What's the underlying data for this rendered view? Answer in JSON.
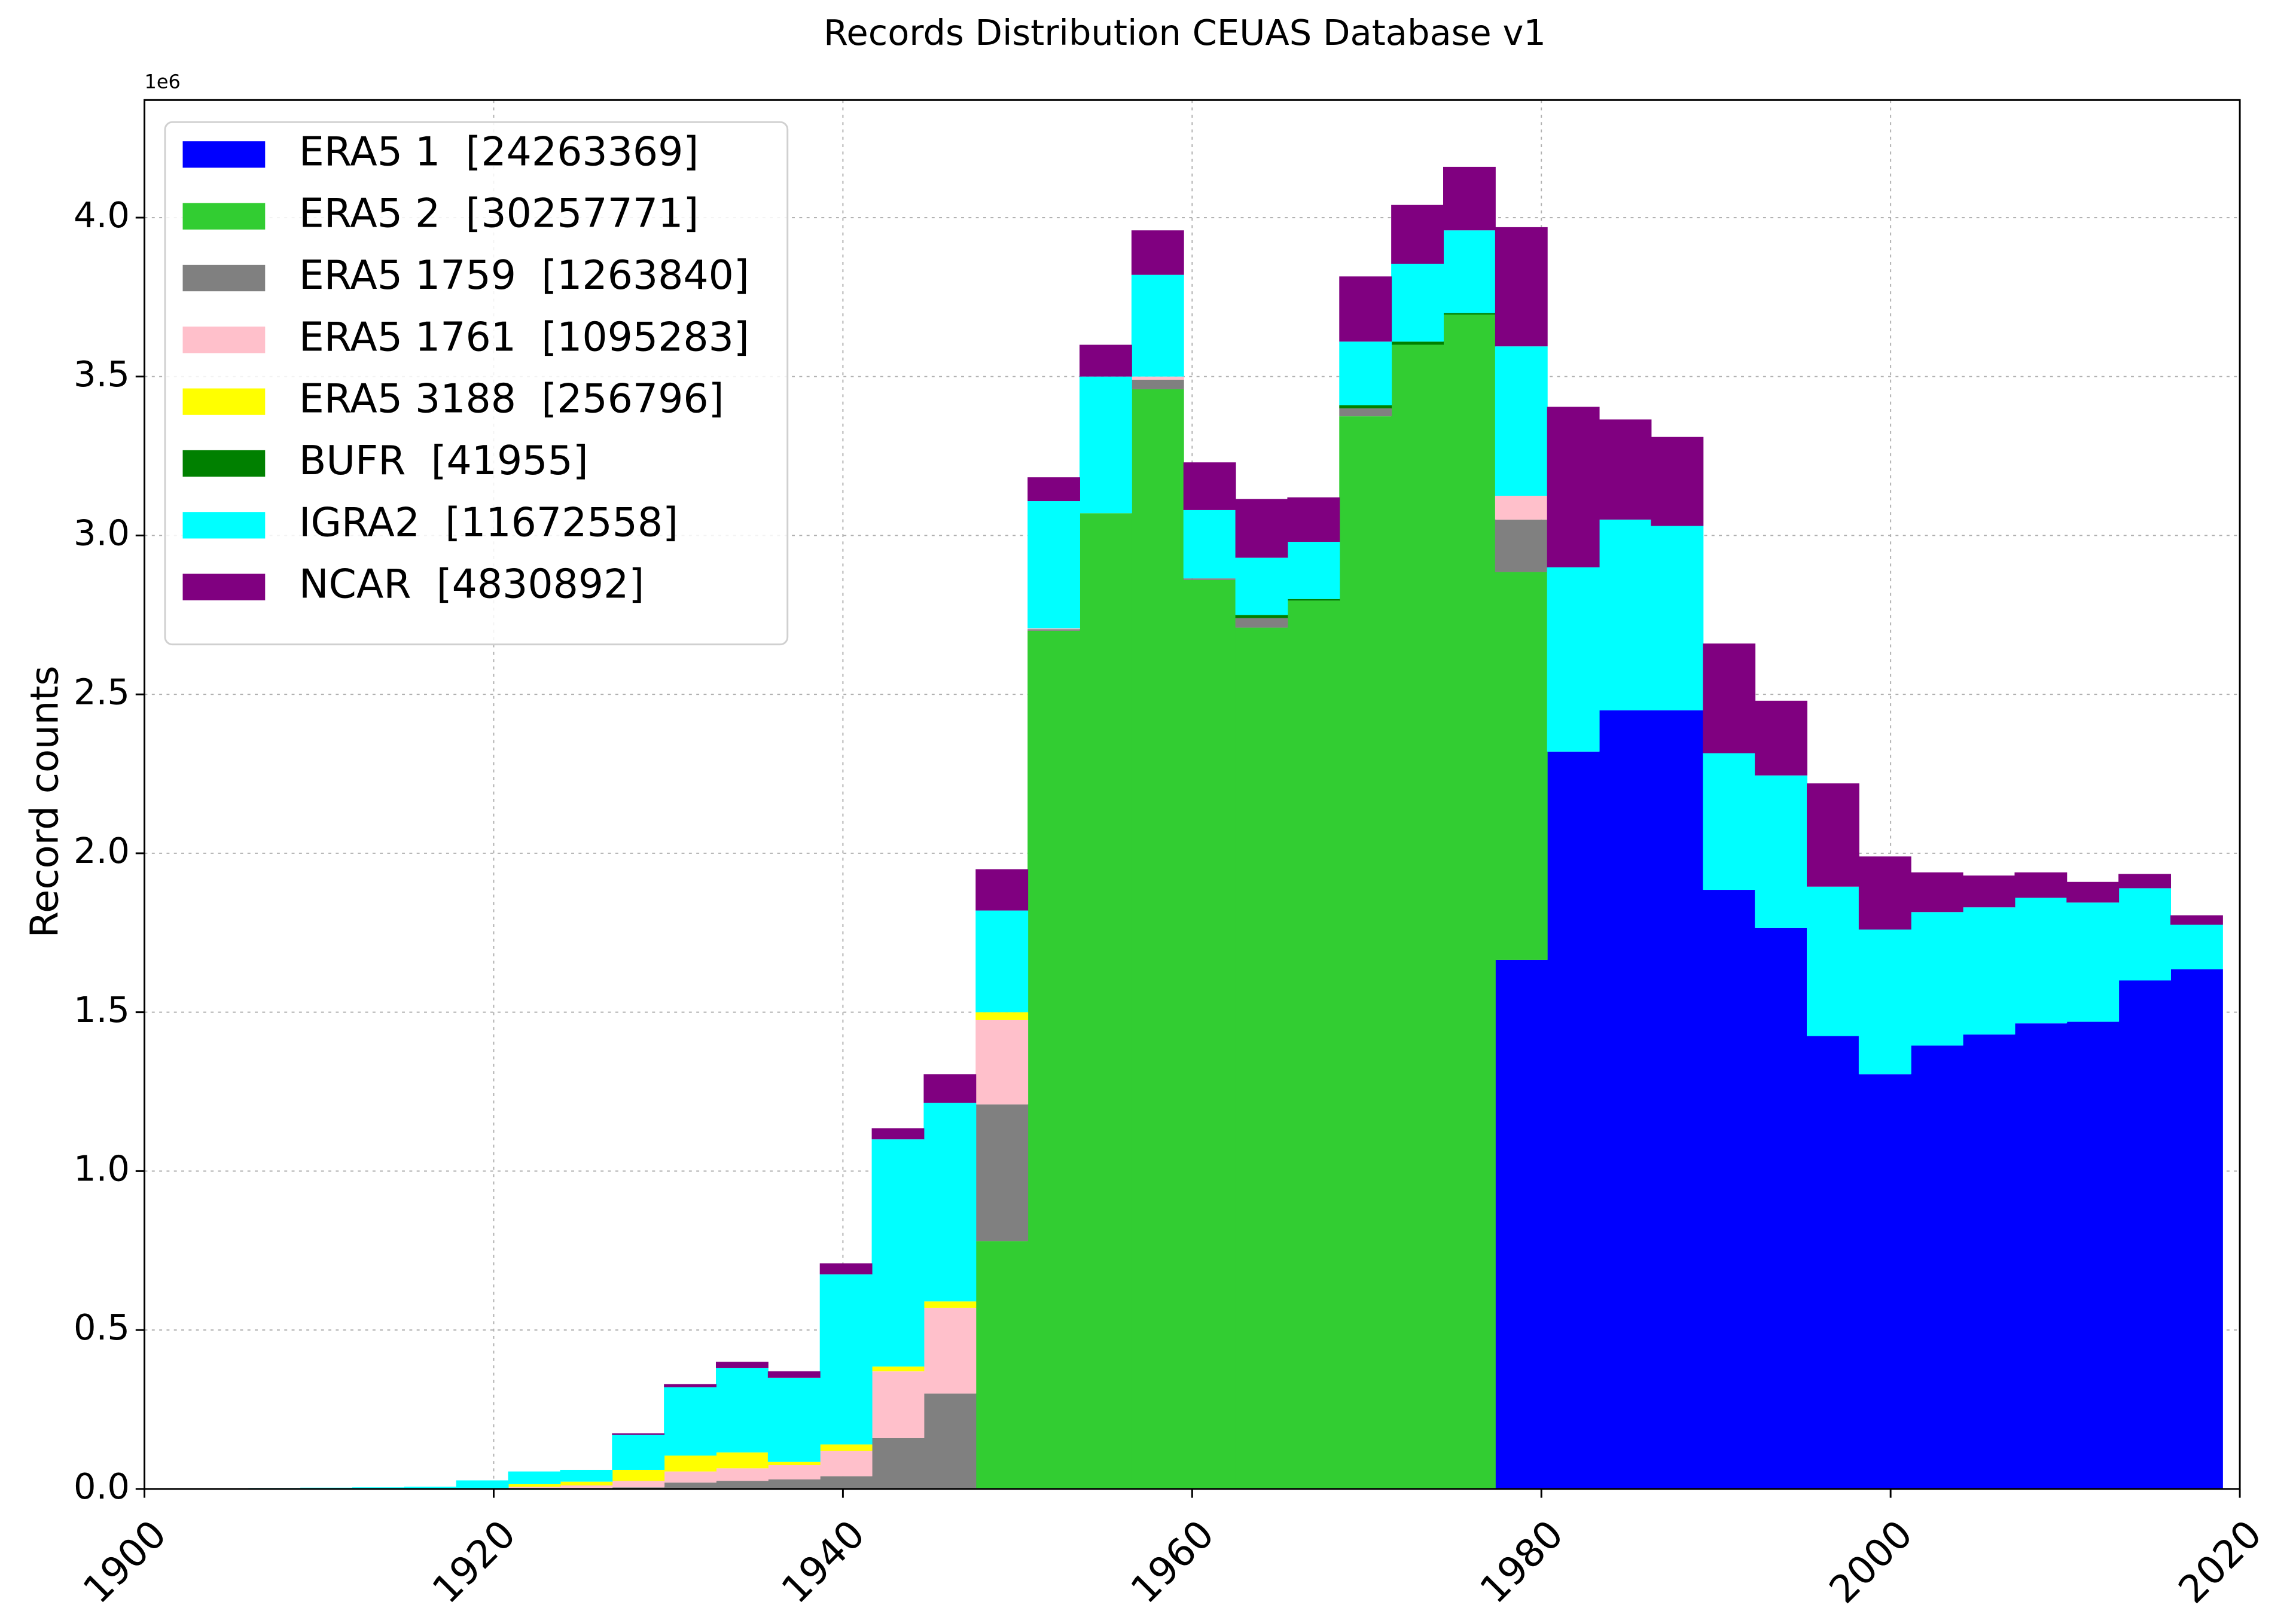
{
  "chart_data": {
    "type": "histogram",
    "stacked": true,
    "title": "Records Distribution CEUAS Database v1",
    "ylabel": "Record counts",
    "y_offset_label": "1e6",
    "bins": [
      1900,
      1902.975,
      1905.95,
      1908.925,
      1911.9,
      1914.875,
      1917.85,
      1920.825,
      1923.8,
      1926.775,
      1929.75,
      1932.725,
      1935.7,
      1938.675,
      1941.65,
      1944.625,
      1947.6,
      1950.575,
      1953.55,
      1956.525,
      1959.5,
      1962.475,
      1965.45,
      1968.425,
      1971.4,
      1974.375,
      1977.35,
      1980.325,
      1983.3,
      1986.275,
      1989.25,
      1992.225,
      1995.2,
      1998.175,
      2001.15,
      2004.125,
      2007.1,
      2010.075,
      2013.05,
      2016.025,
      2019
    ],
    "series": [
      {
        "name": "ERA5 1  [24263369]",
        "color": "#0000ff",
        "values": [
          0,
          0,
          0,
          0,
          0,
          0,
          0,
          0,
          0,
          0,
          0,
          0,
          0,
          0,
          0,
          0,
          0,
          0,
          0,
          0,
          0,
          0,
          0,
          0,
          0,
          0,
          1.665,
          2.32,
          2.45,
          2.45,
          1.885,
          1.765,
          1.425,
          1.305,
          1.395,
          1.43,
          1.465,
          1.47,
          1.6,
          1.635
        ]
      },
      {
        "name": "ERA5 2  [30257771]",
        "color": "#32cd32",
        "values": [
          0,
          0,
          0,
          0,
          0,
          0,
          0,
          0,
          0,
          0,
          0,
          0,
          0,
          0,
          0,
          0,
          0.78,
          2.7,
          3.07,
          3.46,
          2.86,
          2.71,
          2.795,
          3.375,
          3.6,
          3.695,
          1.22,
          0,
          0,
          0,
          0,
          0,
          0,
          0,
          0,
          0,
          0,
          0,
          0,
          0
        ]
      },
      {
        "name": "ERA5 1759  [1263840]",
        "color": "#808080",
        "values": [
          0,
          0,
          0,
          0,
          0,
          0,
          0,
          0.002,
          0.003,
          0.005,
          0.02,
          0.025,
          0.03,
          0.04,
          0.16,
          0.3,
          0.43,
          0.005,
          0,
          0.03,
          0.005,
          0.03,
          0,
          0.025,
          0,
          0,
          0.165,
          0,
          0,
          0,
          0,
          0,
          0,
          0,
          0,
          0,
          0,
          0,
          0,
          0
        ]
      },
      {
        "name": "ERA5 1761  [1095283]",
        "color": "#ffc0cb",
        "values": [
          0,
          0,
          0,
          0,
          0,
          0,
          0.002,
          0.005,
          0.008,
          0.02,
          0.035,
          0.04,
          0.045,
          0.08,
          0.21,
          0.27,
          0.265,
          0.003,
          0,
          0.01,
          0,
          0,
          0,
          0,
          0,
          0,
          0.075,
          0,
          0,
          0,
          0,
          0,
          0,
          0,
          0,
          0,
          0,
          0,
          0,
          0
        ]
      },
      {
        "name": "ERA5 3188  [256796]",
        "color": "#ffff00",
        "values": [
          0,
          0,
          0,
          0,
          0,
          0,
          0,
          0.008,
          0.012,
          0.035,
          0.05,
          0.05,
          0.01,
          0.02,
          0.015,
          0.02,
          0.025,
          0,
          0,
          0,
          0,
          0,
          0,
          0,
          0,
          0,
          0,
          0,
          0,
          0,
          0,
          0,
          0,
          0,
          0,
          0,
          0,
          0,
          0,
          0
        ]
      },
      {
        "name": "BUFR  [41955]",
        "color": "#008000",
        "values": [
          0,
          0,
          0,
          0,
          0,
          0,
          0,
          0,
          0,
          0,
          0,
          0,
          0,
          0,
          0,
          0,
          0,
          0,
          0,
          0,
          0,
          0.01,
          0.005,
          0.01,
          0.01,
          0.005,
          0,
          0,
          0,
          0,
          0,
          0,
          0,
          0,
          0,
          0,
          0,
          0,
          0,
          0
        ]
      },
      {
        "name": "IGRA2  [11672558]",
        "color": "#00ffff",
        "values": [
          0.001,
          0.002,
          0.003,
          0.004,
          0.005,
          0.007,
          0.025,
          0.04,
          0.037,
          0.11,
          0.215,
          0.265,
          0.265,
          0.535,
          0.715,
          0.625,
          0.32,
          0.4,
          0.43,
          0.32,
          0.215,
          0.18,
          0.18,
          0.2,
          0.245,
          0.26,
          0.47,
          0.58,
          0.6,
          0.58,
          0.43,
          0.48,
          0.47,
          0.455,
          0.42,
          0.4,
          0.395,
          0.375,
          0.29,
          0.14
        ]
      },
      {
        "name": "NCAR  [4830892]",
        "color": "#800080",
        "values": [
          0,
          0,
          0,
          0,
          0,
          0,
          0,
          0,
          0,
          0.005,
          0.01,
          0.02,
          0.02,
          0.035,
          0.035,
          0.09,
          0.13,
          0.075,
          0.1,
          0.14,
          0.15,
          0.185,
          0.14,
          0.205,
          0.185,
          0.2,
          0.375,
          0.505,
          0.315,
          0.28,
          0.345,
          0.235,
          0.325,
          0.23,
          0.125,
          0.1,
          0.08,
          0.065,
          0.045,
          0.03
        ]
      }
    ],
    "xlim": [
      1900,
      2020
    ],
    "xticks": [
      1900,
      1920,
      1940,
      1960,
      1980,
      2000,
      2020
    ],
    "ylim": [
      0,
      4.37
    ],
    "yticks": [
      {
        "value": 0,
        "label": "0.0"
      },
      0.5,
      {
        "value": 1,
        "label": "1.0"
      },
      1.5,
      {
        "value": 2,
        "label": "2.0"
      },
      2.5,
      {
        "value": 3,
        "label": "3.0"
      },
      3.5,
      {
        "value": 4,
        "label": "4.0"
      }
    ],
    "grid": true,
    "legend": "upper left"
  }
}
